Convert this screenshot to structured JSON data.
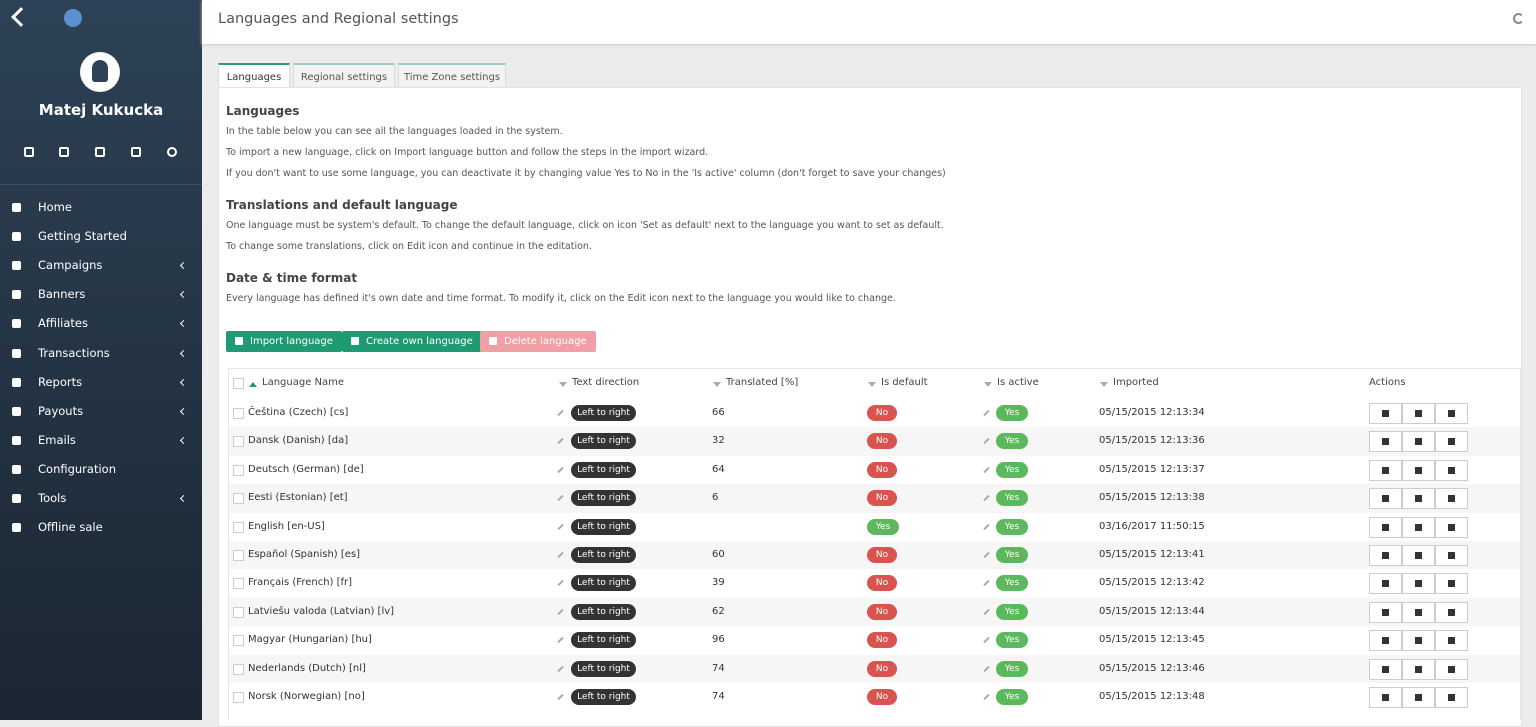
{
  "sidebar": {
    "user_name": "Matej Kukucka",
    "menu": [
      {
        "label": "Home",
        "submenu": false
      },
      {
        "label": "Getting Started",
        "submenu": false
      },
      {
        "label": "Campaigns",
        "submenu": true
      },
      {
        "label": "Banners",
        "submenu": true
      },
      {
        "label": "Affiliates",
        "submenu": true
      },
      {
        "label": "Transactions",
        "submenu": true
      },
      {
        "label": "Reports",
        "submenu": true
      },
      {
        "label": "Payouts",
        "submenu": true
      },
      {
        "label": "Emails",
        "submenu": true
      },
      {
        "label": "Configuration",
        "submenu": false
      },
      {
        "label": "Tools",
        "submenu": true
      },
      {
        "label": "Offline sale",
        "submenu": false
      }
    ]
  },
  "header": {
    "title": "Languages and Regional settings"
  },
  "tabs": [
    "Languages",
    "Regional settings",
    "Time Zone settings"
  ],
  "sections": [
    {
      "title": "Languages",
      "paragraphs": [
        "In the table below you can see all the languages loaded in the system.",
        "To import a new language, click on Import language button and follow the steps in the import wizard.",
        "If you don't want to use some language, you can deactivate it by changing value Yes to No in the 'Is active' column (don't forget to save your changes)"
      ]
    },
    {
      "title": "Translations and default language",
      "paragraphs": [
        "One language must be system's default. To change the default language, click on icon 'Set as default' next to the language you want to set as default.",
        "To change some translations, click on Edit icon and continue in the editation."
      ]
    },
    {
      "title": "Date & time format",
      "paragraphs": [
        "Every language has defined it's own date and time format. To modify it, click on the Edit icon next to the language you would like to change."
      ]
    }
  ],
  "buttons": [
    "Import language",
    "Create own language",
    "Delete language"
  ],
  "table": {
    "columns": [
      "Language Name",
      "Text direction",
      "Translated [%]",
      "Is default",
      "Is active",
      "Imported",
      "Actions"
    ],
    "rows": [
      [
        "Čeština (Czech) [cs]",
        "Left to right",
        66,
        "No",
        "Yes",
        "05/15/2015 12:13:34"
      ],
      [
        "Dansk (Danish) [da]",
        "Left to right",
        32,
        "No",
        "Yes",
        "05/15/2015 12:13:36"
      ],
      [
        "Deutsch (German) [de]",
        "Left to right",
        64,
        "No",
        "Yes",
        "05/15/2015 12:13:37"
      ],
      [
        "Eesti (Estonian) [et]",
        "Left to right",
        6,
        "No",
        "Yes",
        "05/15/2015 12:13:38"
      ],
      [
        "English [en-US]",
        "Left to right",
        null,
        "Yes",
        "Yes",
        "03/16/2017 11:50:15"
      ],
      [
        "Español (Spanish) [es]",
        "Left to right",
        60,
        "No",
        "Yes",
        "05/15/2015 12:13:41"
      ],
      [
        "Français (French) [fr]",
        "Left to right",
        39,
        "No",
        "Yes",
        "05/15/2015 12:13:42"
      ],
      [
        "Latviešu valoda (Latvian) [lv]",
        "Left to right",
        62,
        "No",
        "Yes",
        "05/15/2015 12:13:44"
      ],
      [
        "Magyar (Hungarian) [hu]",
        "Left to right",
        96,
        "No",
        "Yes",
        "05/15/2015 12:13:45"
      ],
      [
        "Nederlands (Dutch) [nl]",
        "Left to right",
        74,
        "No",
        "Yes",
        "05/15/2015 12:13:46"
      ],
      [
        "Norsk (Norwegian) [no]",
        "Left to right",
        74,
        "No",
        "Yes",
        "05/15/2015 12:13:48"
      ]
    ]
  }
}
